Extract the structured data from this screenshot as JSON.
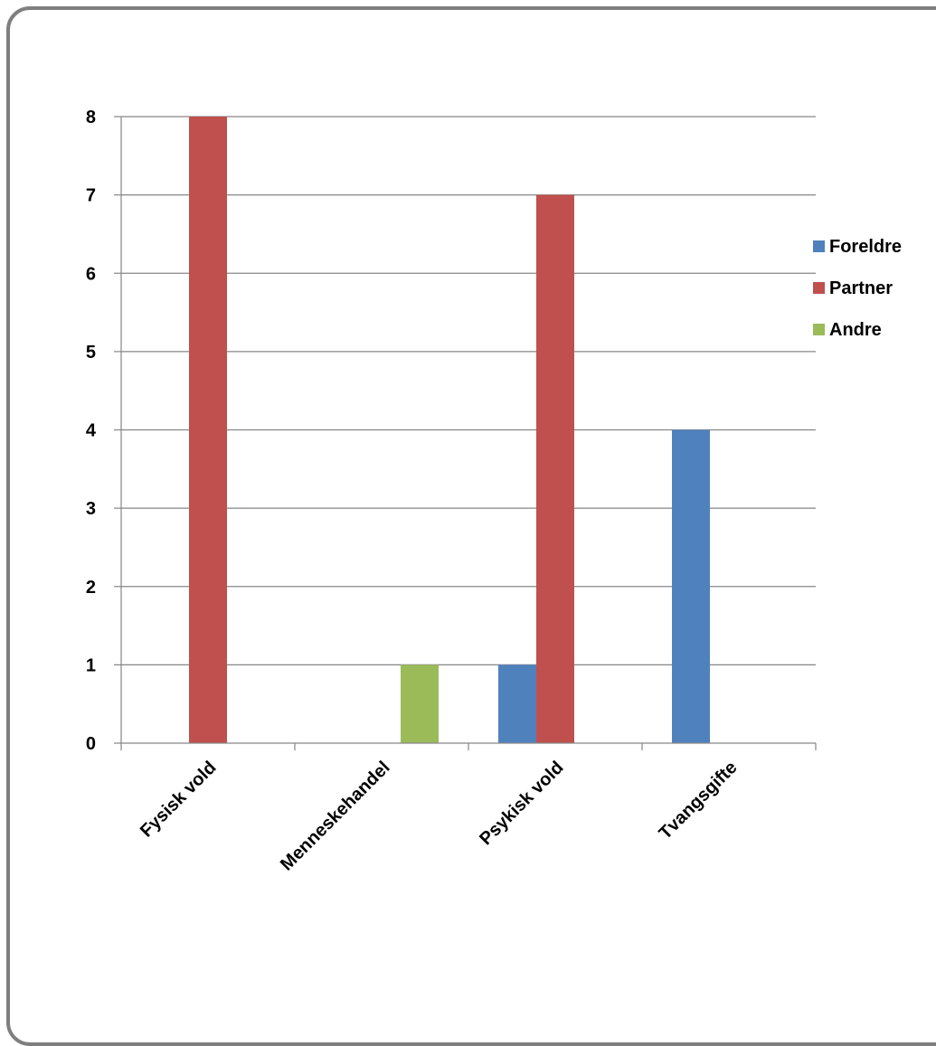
{
  "chart_data": {
    "type": "bar",
    "categories": [
      "Fysisk vold",
      "Menneskehandel",
      "Psykisk vold",
      "Tvangsgifte"
    ],
    "series": [
      {
        "name": "Foreldre",
        "color": "#4f81bd",
        "values": [
          0,
          0,
          1,
          4
        ]
      },
      {
        "name": "Partner",
        "color": "#c0504d",
        "values": [
          8,
          0,
          7,
          0
        ]
      },
      {
        "name": "Andre",
        "color": "#9bbb59",
        "values": [
          0,
          1,
          0,
          0
        ]
      }
    ],
    "yticks": [
      "0",
      "1",
      "2",
      "3",
      "4",
      "5",
      "6",
      "7",
      "8"
    ],
    "ylim": [
      0,
      8
    ],
    "grid": true,
    "legend_position": "right"
  }
}
